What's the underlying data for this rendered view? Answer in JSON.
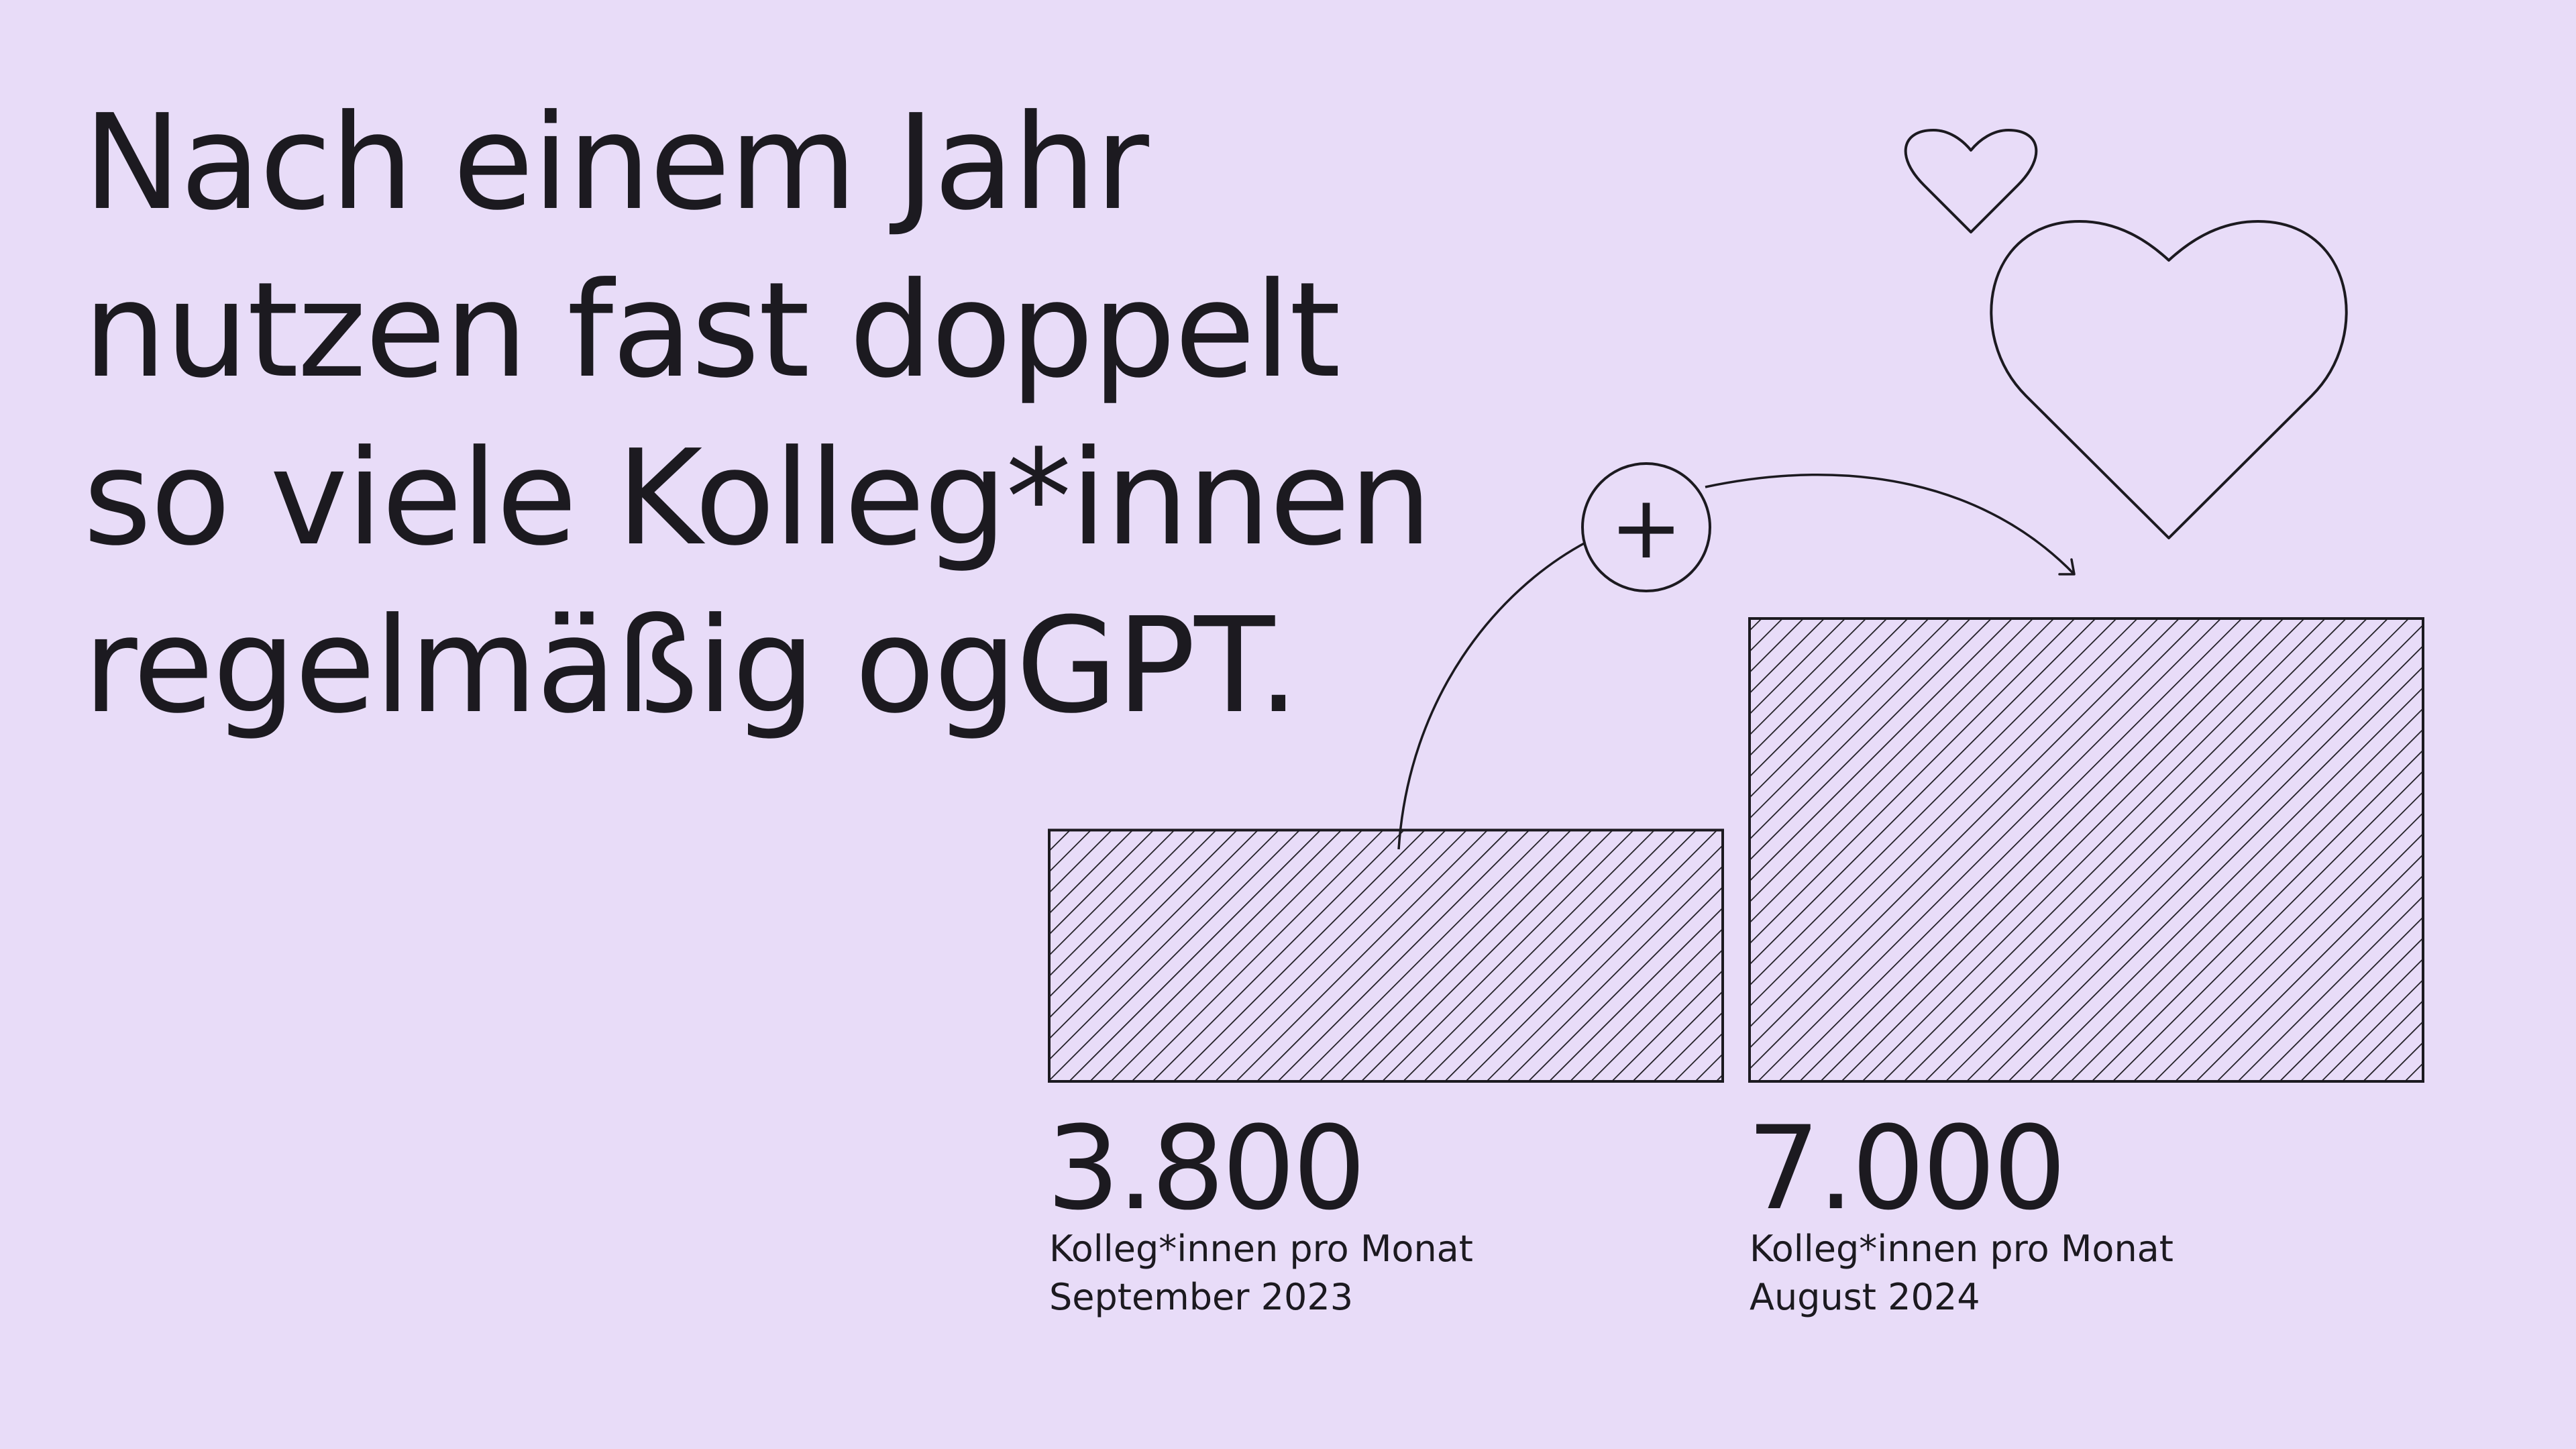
{
  "headline": {
    "lines": [
      "Nach einem Jahr",
      "nutzen fast doppelt",
      "so viele Kolleg*innen",
      "regelmäßig ogGPT."
    ]
  },
  "chart_data": {
    "type": "bar",
    "categories": [
      "September 2023",
      "August 2024"
    ],
    "values": [
      3800,
      7000
    ],
    "value_labels": [
      "3.800",
      "7.000"
    ],
    "unit_label": "Kolleg*innen pro Monat",
    "annotation_symbol": "+",
    "icons": [
      "plus-circle-icon",
      "curved-arrow-icon",
      "heart-icon",
      "heart-icon"
    ]
  },
  "colors": {
    "background": "#e8dcf8",
    "ink": "#1c1a20"
  }
}
